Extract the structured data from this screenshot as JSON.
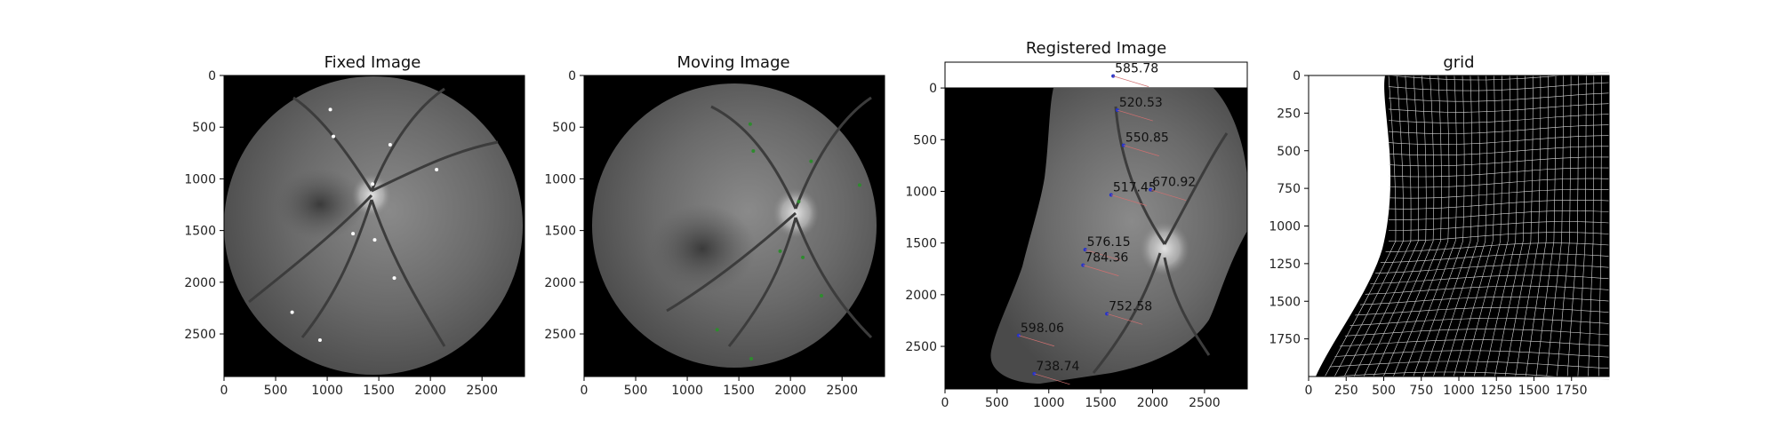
{
  "chart_data": [
    {
      "type": "image",
      "title": "Fixed Image",
      "xlim": [
        0,
        2912
      ],
      "ylim": [
        2912,
        0
      ],
      "xticks": [
        0,
        500,
        1000,
        1500,
        2000,
        2500
      ],
      "yticks": [
        0,
        500,
        1000,
        1500,
        2000,
        2500
      ],
      "landmarks": [
        [
          1030,
          330
        ],
        [
          1060,
          590
        ],
        [
          1610,
          670
        ],
        [
          1440,
          1050
        ],
        [
          2060,
          910
        ],
        [
          1250,
          1530
        ],
        [
          1460,
          1590
        ],
        [
          1650,
          1960
        ],
        [
          660,
          2290
        ],
        [
          930,
          2560
        ]
      ]
    },
    {
      "type": "image",
      "title": "Moving Image",
      "xlim": [
        0,
        2912
      ],
      "ylim": [
        2912,
        0
      ],
      "xticks": [
        0,
        500,
        1000,
        1500,
        2000,
        2500
      ],
      "yticks": [
        0,
        500,
        1000,
        1500,
        2000,
        2500
      ],
      "landmarks": [
        [
          1610,
          470
        ],
        [
          1640,
          730
        ],
        [
          2200,
          830
        ],
        [
          2080,
          1220
        ],
        [
          2670,
          1060
        ],
        [
          1900,
          1700
        ],
        [
          2120,
          1760
        ],
        [
          2300,
          2130
        ],
        [
          1290,
          2460
        ],
        [
          1620,
          2740
        ]
      ]
    },
    {
      "type": "image",
      "title": "Registered Image",
      "xlim": [
        0,
        2912
      ],
      "ylim": [
        2912,
        -250
      ],
      "xticks": [
        0,
        500,
        1000,
        1500,
        2000,
        2500
      ],
      "yticks": [
        0,
        500,
        1000,
        1500,
        2000,
        2500
      ],
      "distances": [
        {
          "label": "585.78",
          "x": 1620,
          "y": -150
        },
        {
          "label": "520.53",
          "x": 1660,
          "y": 180
        },
        {
          "label": "550.85",
          "x": 1720,
          "y": 520
        },
        {
          "label": "517.45",
          "x": 1600,
          "y": 1000
        },
        {
          "label": "670.92",
          "x": 1980,
          "y": 950
        },
        {
          "label": "576.15",
          "x": 1350,
          "y": 1530
        },
        {
          "label": "784.36",
          "x": 1330,
          "y": 1680
        },
        {
          "label": "752.58",
          "x": 1560,
          "y": 2150
        },
        {
          "label": "598.06",
          "x": 710,
          "y": 2360
        },
        {
          "label": "738.74",
          "x": 860,
          "y": 2730
        }
      ]
    },
    {
      "type": "image",
      "title": "grid",
      "xlim": [
        0,
        2000
      ],
      "ylim": [
        2000,
        0
      ],
      "xticks": [
        0,
        250,
        500,
        750,
        1000,
        1250,
        1500,
        1750
      ],
      "yticks": [
        0,
        250,
        500,
        750,
        1000,
        1250,
        1500,
        1750
      ]
    }
  ]
}
